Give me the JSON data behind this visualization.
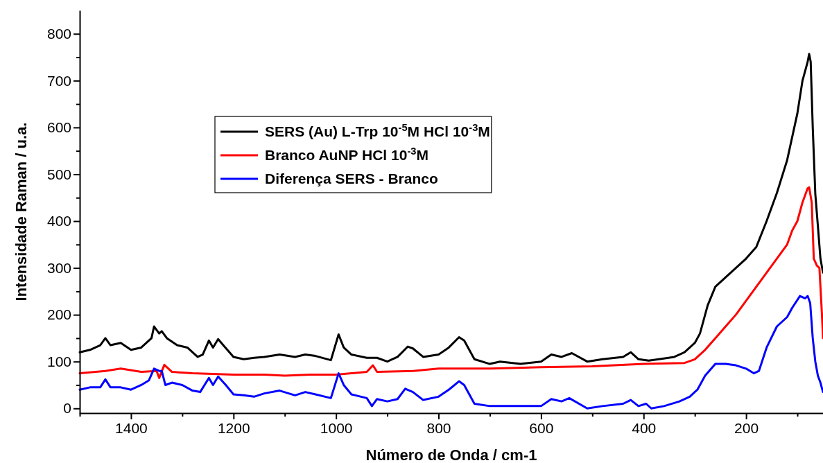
{
  "chart_data": {
    "type": "line",
    "xlabel": "Número de Onda / cm-1",
    "ylabel": "Intensidade Raman / u.a.",
    "xlim": [
      1500,
      50
    ],
    "ylim": [
      -10,
      850
    ],
    "xticks": [
      {
        "value": 1500,
        "label": null
      },
      1400,
      {
        "value": 1300,
        "label": null
      },
      1200,
      {
        "value": 1100,
        "label": null
      },
      1000,
      {
        "value": 900,
        "label": null
      },
      800,
      {
        "value": 700,
        "label": null
      },
      600,
      {
        "value": 500,
        "label": null
      },
      400,
      {
        "value": 300,
        "label": null
      },
      200,
      {
        "value": 100,
        "label": null
      }
    ],
    "yticks": [
      0,
      {
        "value": 50,
        "label": null
      },
      100,
      {
        "value": 150,
        "label": null
      },
      200,
      {
        "value": 250,
        "label": null
      },
      300,
      {
        "value": 350,
        "label": null
      },
      400,
      {
        "value": 450,
        "label": null
      },
      500,
      {
        "value": 550,
        "label": null
      },
      600,
      {
        "value": 650,
        "label": null
      },
      700,
      {
        "value": 750,
        "label": null
      },
      800
    ],
    "legend": "top left",
    "grid": false,
    "marker": "none",
    "line_style": "solid",
    "series": [
      {
        "name": "SERS (Au) L-Trp 10$^{-5}$M HCl 10$^{-3}$M",
        "color": "#000000",
        "x": [
          1500,
          1480,
          1460,
          1450,
          1440,
          1420,
          1400,
          1380,
          1360,
          1355,
          1345,
          1340,
          1330,
          1310,
          1290,
          1270,
          1260,
          1248,
          1240,
          1230,
          1220,
          1200,
          1180,
          1160,
          1140,
          1110,
          1080,
          1060,
          1040,
          1010,
          995,
          985,
          970,
          940,
          920,
          900,
          880,
          860,
          850,
          830,
          800,
          780,
          760,
          750,
          730,
          700,
          680,
          640,
          600,
          580,
          560,
          540,
          510,
          480,
          440,
          425,
          410,
          390,
          370,
          340,
          320,
          300,
          290,
          275,
          260,
          240,
          220,
          200,
          180,
          160,
          140,
          120,
          110,
          100,
          90,
          80,
          77,
          74,
          70,
          65,
          60,
          55,
          50
        ],
        "values": [
          120,
          125,
          135,
          150,
          135,
          140,
          125,
          130,
          150,
          175,
          160,
          165,
          150,
          135,
          130,
          110,
          115,
          145,
          130,
          148,
          135,
          110,
          105,
          108,
          110,
          115,
          110,
          115,
          112,
          103,
          158,
          130,
          115,
          108,
          108,
          100,
          110,
          132,
          128,
          110,
          115,
          130,
          152,
          145,
          105,
          95,
          100,
          95,
          100,
          115,
          110,
          118,
          100,
          105,
          110,
          120,
          105,
          102,
          105,
          110,
          120,
          140,
          160,
          220,
          260,
          280,
          300,
          320,
          345,
          400,
          460,
          530,
          580,
          630,
          700,
          740,
          757,
          740,
          600,
          458,
          390,
          320,
          290
        ]
      },
      {
        "name": "Branco AuNP HCl 10$^{-3}$M",
        "color": "#ff0000",
        "x": [
          1500,
          1450,
          1420,
          1380,
          1350,
          1345,
          1335,
          1320,
          1280,
          1200,
          1140,
          1100,
          1050,
          1000,
          940,
          928,
          920,
          850,
          800,
          700,
          600,
          500,
          400,
          320,
          300,
          280,
          260,
          240,
          220,
          200,
          180,
          160,
          140,
          120,
          110,
          100,
          90,
          80,
          77,
          72,
          68,
          62,
          57,
          52,
          50
        ],
        "values": [
          75,
          80,
          85,
          78,
          80,
          65,
          93,
          78,
          75,
          72,
          72,
          70,
          72,
          72,
          78,
          92,
          78,
          80,
          85,
          85,
          88,
          90,
          95,
          97,
          105,
          125,
          150,
          175,
          200,
          230,
          260,
          290,
          320,
          350,
          380,
          400,
          440,
          470,
          472,
          440,
          320,
          305,
          300,
          200,
          150
        ]
      },
      {
        "name": "Diferença SERS - Branco",
        "color": "#0000ff",
        "x": [
          1500,
          1480,
          1460,
          1450,
          1440,
          1420,
          1400,
          1380,
          1365,
          1355,
          1345,
          1340,
          1333,
          1320,
          1300,
          1280,
          1265,
          1248,
          1240,
          1230,
          1215,
          1200,
          1180,
          1160,
          1140,
          1110,
          1080,
          1060,
          1040,
          1010,
          995,
          985,
          970,
          940,
          930,
          920,
          900,
          880,
          865,
          850,
          830,
          800,
          780,
          760,
          750,
          730,
          700,
          650,
          600,
          580,
          560,
          545,
          510,
          480,
          440,
          425,
          410,
          395,
          385,
          360,
          330,
          310,
          295,
          280,
          260,
          240,
          220,
          200,
          185,
          175,
          160,
          140,
          120,
          110,
          95,
          85,
          80,
          75,
          70,
          65,
          60,
          55,
          50
        ],
        "values": [
          40,
          45,
          45,
          62,
          45,
          45,
          40,
          50,
          60,
          85,
          80,
          80,
          50,
          55,
          50,
          38,
          35,
          65,
          50,
          68,
          50,
          30,
          28,
          25,
          32,
          38,
          28,
          35,
          30,
          22,
          75,
          50,
          30,
          22,
          5,
          20,
          15,
          20,
          42,
          35,
          18,
          25,
          40,
          58,
          50,
          10,
          5,
          5,
          5,
          20,
          15,
          22,
          0,
          5,
          10,
          18,
          5,
          10,
          0,
          5,
          15,
          25,
          40,
          70,
          95,
          95,
          92,
          85,
          75,
          80,
          130,
          175,
          195,
          215,
          240,
          235,
          240,
          225,
          150,
          100,
          70,
          55,
          35
        ]
      }
    ]
  }
}
